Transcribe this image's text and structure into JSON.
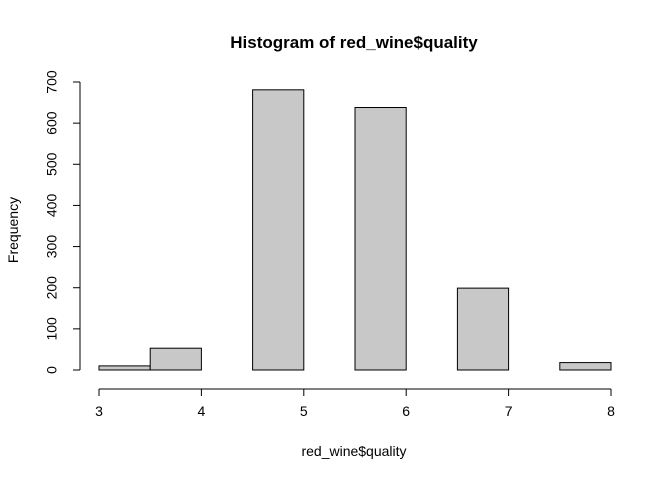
{
  "chart_data": {
    "type": "bar",
    "title": "Histogram of red_wine$quality",
    "xlabel": "red_wine$quality",
    "ylabel": "Frequency",
    "bins": [
      {
        "x0": 3.0,
        "x1": 3.5,
        "value": 10
      },
      {
        "x0": 3.5,
        "x1": 4.0,
        "value": 53
      },
      {
        "x0": 4.0,
        "x1": 4.5,
        "value": 0
      },
      {
        "x0": 4.5,
        "x1": 5.0,
        "value": 681
      },
      {
        "x0": 5.0,
        "x1": 5.5,
        "value": 0
      },
      {
        "x0": 5.5,
        "x1": 6.0,
        "value": 638
      },
      {
        "x0": 6.0,
        "x1": 6.5,
        "value": 0
      },
      {
        "x0": 6.5,
        "x1": 7.0,
        "value": 199
      },
      {
        "x0": 7.0,
        "x1": 7.5,
        "value": 0
      },
      {
        "x0": 7.5,
        "x1": 8.0,
        "value": 18
      }
    ],
    "xlim": [
      3,
      8
    ],
    "ylim": [
      0,
      700
    ],
    "xticks": [
      "3",
      "4",
      "5",
      "6",
      "7",
      "8"
    ],
    "yticks": [
      "0",
      "100",
      "200",
      "300",
      "400",
      "500",
      "600",
      "700"
    ],
    "grid": false,
    "bar_fill": "#c8c8c8",
    "bar_stroke": "#000000"
  }
}
